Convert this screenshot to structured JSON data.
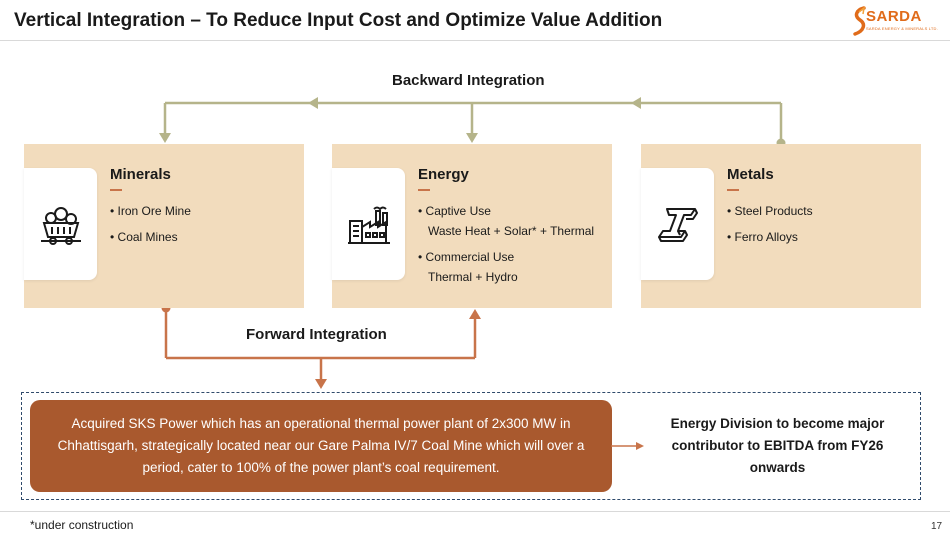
{
  "slide": {
    "title": "Vertical Integration – To Reduce Input Cost and Optimize Value Addition",
    "page_number": "17",
    "footnote": "*under construction"
  },
  "logo": {
    "name": "SARDA",
    "tagline": "SARDA ENERGY & MINERALS LTD.",
    "accent_color": "#e06b1a"
  },
  "flow": {
    "backward_label": "Backward Integration",
    "forward_label": "Forward Integration",
    "backward_color": "#b5b48a",
    "forward_color": "#c8744a"
  },
  "cards": [
    {
      "title": "Minerals",
      "icon": "mine-cart-icon",
      "items": [
        {
          "lines": [
            "Iron Ore Mine"
          ]
        },
        {
          "lines": [
            "Coal Mines"
          ]
        }
      ]
    },
    {
      "title": "Energy",
      "icon": "power-plant-icon",
      "items": [
        {
          "lines": [
            "Captive Use",
            "Waste Heat + Solar* + Thermal"
          ]
        },
        {
          "lines": [
            "Commercial Use",
            "Thermal + Hydro"
          ]
        }
      ]
    },
    {
      "title": "Metals",
      "icon": "steel-beam-icon",
      "items": [
        {
          "lines": [
            "Steel Products"
          ]
        },
        {
          "lines": [
            "Ferro Alloys"
          ]
        }
      ]
    }
  ],
  "acquisition": {
    "text": "Acquired SKS Power which has an operational thermal power plant of 2x300 MW in Chhattisgarh, strategically located near our Gare Palma IV/7 Coal Mine which will over a period, cater to 100% of the power plant’s coal requirement."
  },
  "outcome": {
    "text": "Energy Division to become major contributor to EBITDA from FY26 onwards"
  },
  "colors": {
    "card_fill": "#f2dcbd",
    "acquisition_fill": "#a9592e",
    "dashed_border": "#2f4a6b"
  }
}
